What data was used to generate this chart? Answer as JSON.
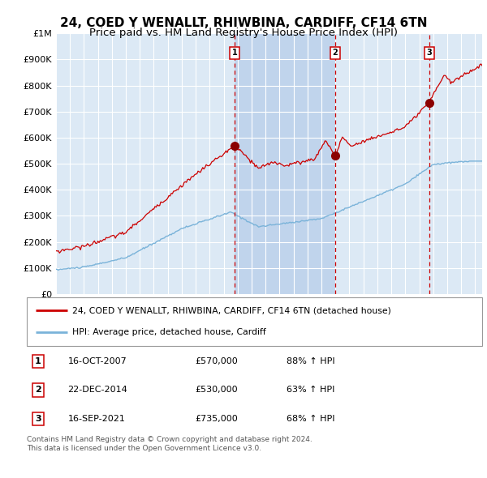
{
  "title": "24, COED Y WENALLT, RHIWBINA, CARDIFF, CF14 6TN",
  "subtitle": "Price paid vs. HM Land Registry's House Price Index (HPI)",
  "legend_label_red": "24, COED Y WENALLT, RHIWBINA, CARDIFF, CF14 6TN (detached house)",
  "legend_label_blue": "HPI: Average price, detached house, Cardiff",
  "footer1": "Contains HM Land Registry data © Crown copyright and database right 2024.",
  "footer2": "This data is licensed under the Open Government Licence v3.0.",
  "sale_markers": [
    {
      "num": 1,
      "date_x": 2007.79,
      "price": 570000,
      "label": "16-OCT-2007",
      "amount": "£570,000",
      "pct": "88% ↑ HPI"
    },
    {
      "num": 2,
      "date_x": 2014.98,
      "price": 530000,
      "label": "22-DEC-2014",
      "amount": "£530,000",
      "pct": "63% ↑ HPI"
    },
    {
      "num": 3,
      "date_x": 2021.71,
      "price": 735000,
      "label": "16-SEP-2021",
      "amount": "£735,000",
      "pct": "68% ↑ HPI"
    }
  ],
  "shaded_start": 2007.79,
  "shaded_end": 2014.98,
  "ylim": [
    0,
    1000000
  ],
  "yticks": [
    0,
    100000,
    200000,
    300000,
    400000,
    500000,
    600000,
    700000,
    800000,
    900000,
    1000000
  ],
  "ytick_labels": [
    "£0",
    "£100K",
    "£200K",
    "£300K",
    "£400K",
    "£500K",
    "£600K",
    "£700K",
    "£800K",
    "£900K",
    "£1M"
  ],
  "xlim_start": 1995.0,
  "xlim_end": 2025.5,
  "background_color": "#ffffff",
  "plot_bg_color": "#dce9f5",
  "shaded_region_color": "#c0d4ec",
  "grid_color": "#ffffff",
  "red_line_color": "#cc0000",
  "blue_line_color": "#7ab3d9",
  "dashed_line_color": "#cc0000",
  "marker_color": "#8b0000",
  "title_fontsize": 11,
  "subtitle_fontsize": 9.5
}
